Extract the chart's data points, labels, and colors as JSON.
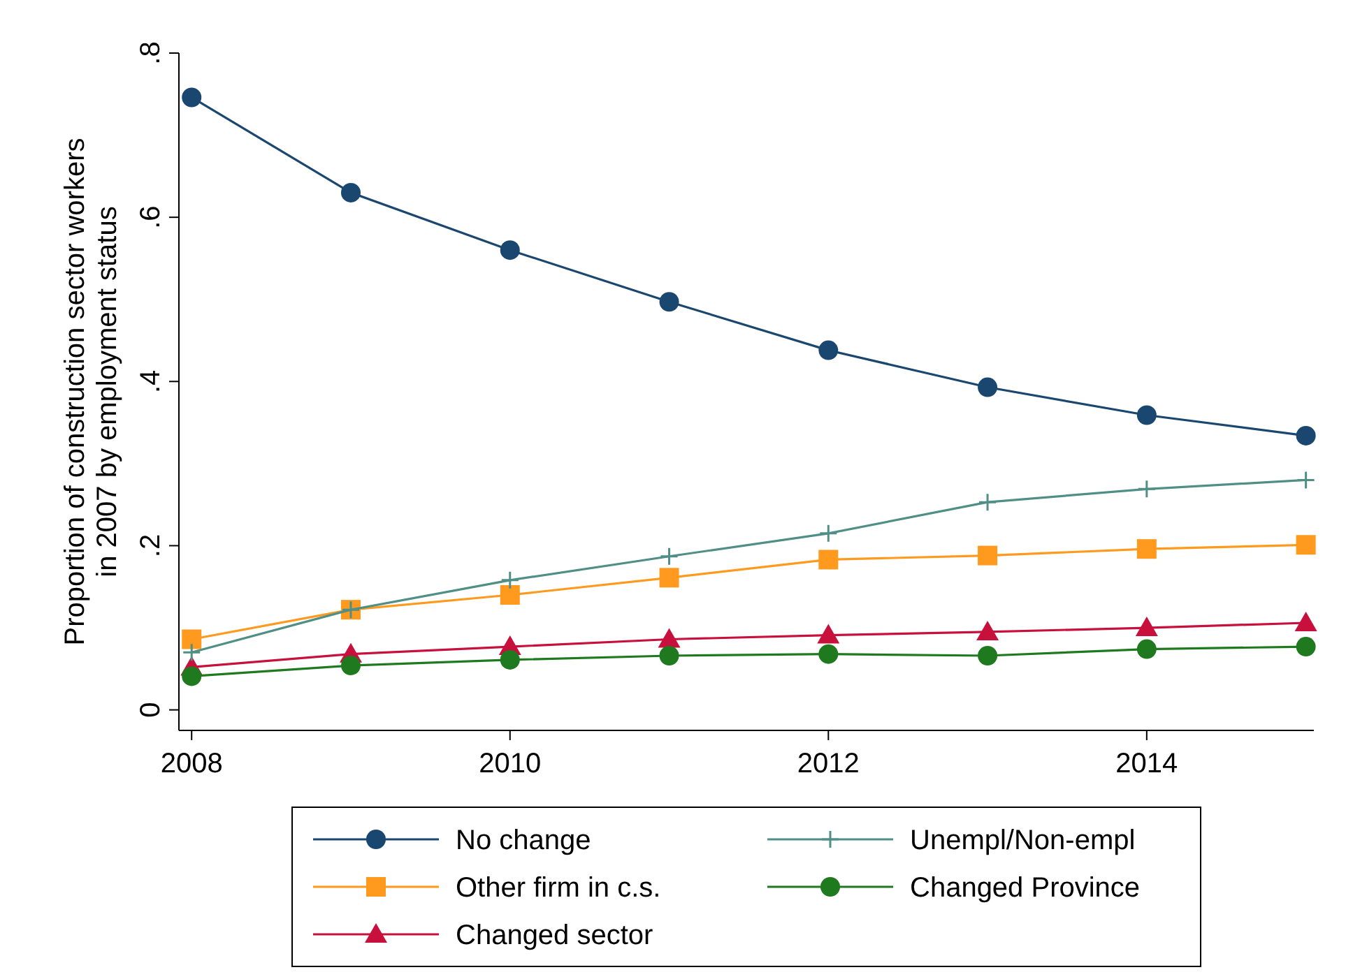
{
  "chart_data": {
    "type": "line",
    "ylabel": "Proportion of construction sector workers\nin 2007 by employment status",
    "x": [
      2008,
      2009,
      2010,
      2011,
      2012,
      2013,
      2014,
      2015
    ],
    "xlim": [
      2007.92,
      2015.05
    ],
    "xticks": [
      2008,
      2010,
      2012,
      2014
    ],
    "ylim": [
      -0.025,
      0.8
    ],
    "yticks": [
      {
        "value": 0,
        "label": "0"
      },
      {
        "value": 0.2,
        "label": ".2"
      },
      {
        "value": 0.4,
        "label": ".4"
      },
      {
        "value": 0.6,
        "label": ".6"
      },
      {
        "value": 0.8,
        "label": ".8"
      }
    ],
    "grid": false,
    "legend": "bottom",
    "line_style": "solid",
    "series": [
      {
        "name": "No change",
        "color": "#1a476f",
        "marker": "circle",
        "values": [
          0.746,
          0.63,
          0.56,
          0.497,
          0.438,
          0.393,
          0.359,
          0.334
        ]
      },
      {
        "name": "Unempl/Non-empl",
        "color": "#4f8f86",
        "marker": "cross",
        "values": [
          0.07,
          0.122,
          0.158,
          0.187,
          0.215,
          0.253,
          0.269,
          0.28
        ]
      },
      {
        "name": "Other firm in c.s.",
        "color": "#ff9a1f",
        "marker": "square",
        "values": [
          0.086,
          0.122,
          0.14,
          0.161,
          0.183,
          0.188,
          0.196,
          0.201
        ]
      },
      {
        "name": "Changed Province",
        "color": "#1f7a1f",
        "marker": "circle",
        "values": [
          0.041,
          0.054,
          0.061,
          0.066,
          0.068,
          0.066,
          0.074,
          0.077
        ]
      },
      {
        "name": "Changed sector",
        "color": "#c8103c",
        "marker": "triangle",
        "values": [
          0.052,
          0.068,
          0.077,
          0.086,
          0.091,
          0.095,
          0.1,
          0.106
        ]
      }
    ]
  }
}
